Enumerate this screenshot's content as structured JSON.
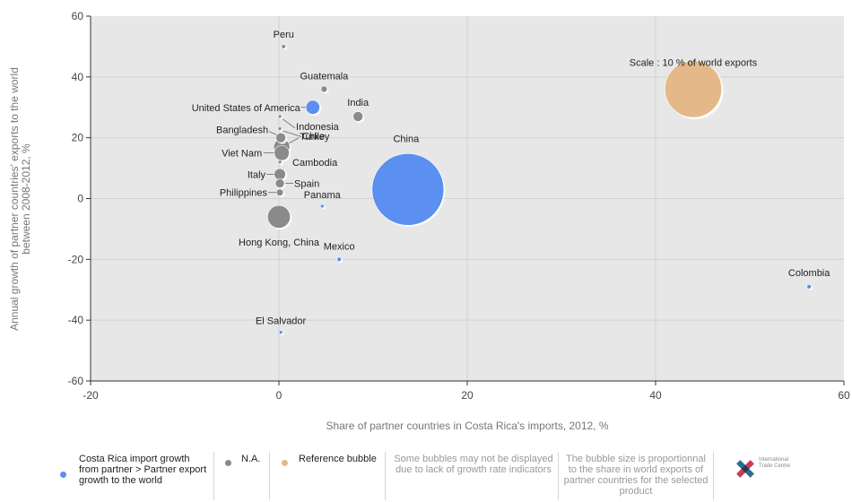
{
  "chart_data": {
    "type": "scatter",
    "xlabel": "Share of partner countries in Costa Rica's imports, 2012, %",
    "ylabel_lines": [
      "Annual growth of partner countries' exports to the world",
      "between 2008-2012, %"
    ],
    "xlim": [
      -20,
      60
    ],
    "ylim": [
      -60,
      60
    ],
    "xticks": [
      -20,
      0,
      20,
      40,
      60
    ],
    "yticks": [
      60,
      40,
      20,
      0,
      -20,
      -40,
      -60
    ],
    "grid": true,
    "points": [
      {
        "label": "Peru",
        "x": 0.5,
        "y": 50,
        "size": 0.05,
        "category": "na"
      },
      {
        "label": "Guatemala",
        "x": 4.8,
        "y": 36,
        "size": 0.12,
        "category": "na"
      },
      {
        "label": "India",
        "x": 8.4,
        "y": 27,
        "size": 0.3,
        "category": "na"
      },
      {
        "label": "United States of America",
        "x": 3.6,
        "y": 30,
        "size": 0.6,
        "category": "growth"
      },
      {
        "label": "Indonesia",
        "x": 0.1,
        "y": 27,
        "size": 0.02,
        "category": "na"
      },
      {
        "label": "Chile",
        "x": 0.1,
        "y": 23,
        "size": 0.02,
        "category": "na"
      },
      {
        "label": "Bangladesh",
        "x": 0.2,
        "y": 20,
        "size": 0.3,
        "category": "na"
      },
      {
        "label": "Turkey",
        "x": 0.3,
        "y": 17,
        "size": 0.8,
        "category": "na"
      },
      {
        "label": "Viet Nam",
        "x": 0.3,
        "y": 15,
        "size": 0.7,
        "category": "na"
      },
      {
        "label": "Cambodia",
        "x": 0.1,
        "y": 12,
        "size": 0.03,
        "category": "na"
      },
      {
        "label": "Italy",
        "x": 0.1,
        "y": 8,
        "size": 0.4,
        "category": "na"
      },
      {
        "label": "Spain",
        "x": 0.1,
        "y": 5,
        "size": 0.25,
        "category": "na"
      },
      {
        "label": "Philippines",
        "x": 0.1,
        "y": 2,
        "size": 0.15,
        "category": "na"
      },
      {
        "label": "Panama",
        "x": 4.6,
        "y": -2.5,
        "size": 0.01,
        "category": "growth"
      },
      {
        "label": "Hong Kong, China",
        "x": 0.0,
        "y": -6,
        "size": 1.6,
        "category": "na"
      },
      {
        "label": "China",
        "x": 13.7,
        "y": 3,
        "size": 16,
        "category": "growth"
      },
      {
        "label": "Mexico",
        "x": 6.4,
        "y": -20,
        "size": 0.06,
        "category": "growth"
      },
      {
        "label": "Colombia",
        "x": 56.3,
        "y": -29,
        "size": 0.06,
        "category": "growth"
      },
      {
        "label": "El Salvador",
        "x": 0.2,
        "y": -44,
        "size": 0.005,
        "category": "growth"
      }
    ],
    "reference_bubble": {
      "label": "Scale : 10 % of world exports",
      "x": 44,
      "y": 36,
      "size": 10
    },
    "colors": {
      "growth": "#5b8ff0",
      "na": "#8a8a8a",
      "reference": "#e4b888",
      "plot_bg": "#e7e7e7",
      "grid": "#d2d2d2"
    }
  },
  "legend": {
    "growth_label": "Costa Rica import growth from partner > Partner export growth to the world",
    "na_label": "N.A.",
    "reference_label": "Reference bubble",
    "note_missing": "Some bubbles may not be displayed due to lack of growth rate indicators",
    "note_size": "The bubble size is proportionnal to the share in world exports of partner countries for the selected product",
    "logo_text": "International Trade Centre"
  }
}
